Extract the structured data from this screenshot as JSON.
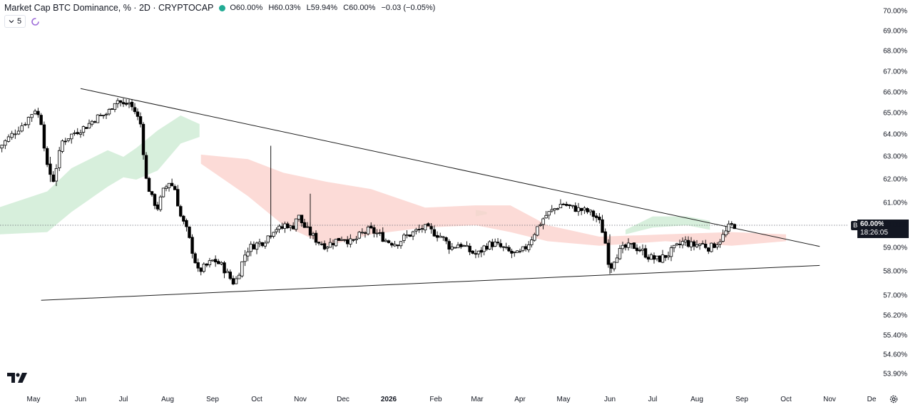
{
  "header": {
    "title": "Market Cap BTC Dominance, %  · 2D · CRYPTOCAP",
    "open": "O60.00%",
    "high": "H60.03%",
    "low": "L59.94%",
    "close": "C60.00%",
    "change": "−0.03 (−0.05%)",
    "collapse_count": "5"
  },
  "price_label": {
    "symbol": "BTC.D",
    "price": "60.00%",
    "countdown": "18:26:05"
  },
  "colors": {
    "up_candle": "#ffffff",
    "down_candle": "#000000",
    "cloud_bull": "#cdebd3",
    "cloud_bear": "#fbd2cd",
    "trendline": "#1e1e1e",
    "live_dot": "#22ab94"
  },
  "icons": [
    "chevron-down-icon",
    "refresh-icon",
    "tradingview-logo-icon",
    "settings-icon"
  ],
  "chart_data": {
    "type": "candlestick",
    "title": "Market Cap BTC Dominance, %",
    "interval": "2D",
    "ylim": [
      53.6,
      70.3
    ],
    "y_ticks": [
      "70.00%",
      "69.00%",
      "68.00%",
      "67.00%",
      "66.00%",
      "65.00%",
      "64.00%",
      "63.00%",
      "62.00%",
      "61.00%",
      "60.00%",
      "59.00%",
      "58.00%",
      "57.00%",
      "56.20%",
      "55.40%",
      "54.60%",
      "53.90%"
    ],
    "y_tick_values": [
      70.0,
      69.0,
      68.0,
      67.0,
      66.0,
      65.0,
      64.0,
      63.0,
      62.0,
      61.0,
      60.0,
      59.0,
      58.0,
      57.0,
      56.2,
      55.4,
      54.6,
      53.9
    ],
    "x_ticks": [
      "May",
      "Jun",
      "Jul",
      "Aug",
      "Sep",
      "Oct",
      "Nov",
      "Dec",
      "2026",
      "Feb",
      "Mar",
      "Apr",
      "May",
      "Jun",
      "Jul",
      "Aug",
      "Sep",
      "Oct",
      "Nov",
      "De"
    ],
    "x_tick_dates": [
      "2025-05-01",
      "2025-06-01",
      "2025-07-01",
      "2025-08-01",
      "2025-09-01",
      "2025-10-01",
      "2025-11-01",
      "2025-12-01",
      "2026-01-01",
      "2026-02-01",
      "2026-03-01",
      "2026-04-01",
      "2026-05-01",
      "2026-06-01",
      "2026-07-01",
      "2026-08-01",
      "2026-09-01",
      "2026-10-01",
      "2026-11-01",
      "2026-12-01"
    ],
    "x_range": [
      "2025-04-10",
      "2026-12-10"
    ],
    "close_path": [
      [
        "2025-04-10",
        63.4
      ],
      [
        "2025-04-18",
        64.0
      ],
      [
        "2025-04-26",
        64.6
      ],
      [
        "2025-05-02",
        65.2
      ],
      [
        "2025-05-06",
        64.6
      ],
      [
        "2025-05-10",
        62.5
      ],
      [
        "2025-05-14",
        62.0
      ],
      [
        "2025-05-20",
        63.7
      ],
      [
        "2025-05-28",
        64.1
      ],
      [
        "2025-06-05",
        64.4
      ],
      [
        "2025-06-12",
        64.8
      ],
      [
        "2025-06-20",
        65.0
      ],
      [
        "2025-06-26",
        65.7
      ],
      [
        "2025-07-01",
        65.4
      ],
      [
        "2025-07-05",
        65.5
      ],
      [
        "2025-07-09",
        65.1
      ],
      [
        "2025-07-13",
        64.5
      ],
      [
        "2025-07-17",
        62.0
      ],
      [
        "2025-07-21",
        61.2
      ],
      [
        "2025-07-25",
        60.8
      ],
      [
        "2025-07-29",
        61.5
      ],
      [
        "2025-08-02",
        61.9
      ],
      [
        "2025-08-06",
        61.6
      ],
      [
        "2025-08-10",
        60.4
      ],
      [
        "2025-08-14",
        59.8
      ],
      [
        "2025-08-18",
        58.9
      ],
      [
        "2025-08-22",
        58.0
      ],
      [
        "2025-08-27",
        58.2
      ],
      [
        "2025-09-02",
        58.5
      ],
      [
        "2025-09-08",
        58.2
      ],
      [
        "2025-09-12",
        57.8
      ],
      [
        "2025-09-16",
        57.5
      ],
      [
        "2025-09-20",
        58.2
      ],
      [
        "2025-09-24",
        58.9
      ],
      [
        "2025-09-28",
        59.1
      ],
      [
        "2025-10-02",
        59.2
      ],
      [
        "2025-10-06",
        59.3
      ],
      [
        "2025-10-10",
        59.6
      ],
      [
        "2025-10-14",
        59.9
      ],
      [
        "2025-10-18",
        59.8
      ],
      [
        "2025-10-22",
        60.1
      ],
      [
        "2025-10-26",
        59.8
      ],
      [
        "2025-10-30",
        60.5
      ],
      [
        "2025-11-03",
        60.0
      ],
      [
        "2025-11-07",
        59.7
      ],
      [
        "2025-11-13",
        59.3
      ],
      [
        "2025-11-19",
        59.1
      ],
      [
        "2025-11-25",
        59.3
      ],
      [
        "2025-12-01",
        59.5
      ],
      [
        "2025-12-07",
        59.2
      ],
      [
        "2025-12-13",
        59.6
      ],
      [
        "2025-12-19",
        59.8
      ],
      [
        "2025-12-25",
        59.6
      ],
      [
        "2025-12-31",
        59.3
      ],
      [
        "2026-01-06",
        59.2
      ],
      [
        "2026-01-12",
        59.5
      ],
      [
        "2026-01-18",
        59.7
      ],
      [
        "2026-01-24",
        59.9
      ],
      [
        "2026-01-30",
        59.7
      ],
      [
        "2026-02-05",
        59.5
      ],
      [
        "2026-02-11",
        59.0
      ],
      [
        "2026-02-17",
        59.2
      ],
      [
        "2026-02-23",
        58.9
      ],
      [
        "2026-03-01",
        58.7
      ],
      [
        "2026-03-07",
        59.1
      ],
      [
        "2026-03-13",
        59.2
      ],
      [
        "2026-03-19",
        59.0
      ],
      [
        "2026-03-25",
        58.8
      ],
      [
        "2026-03-31",
        58.7
      ],
      [
        "2026-04-06",
        59.1
      ],
      [
        "2026-04-12",
        59.8
      ],
      [
        "2026-04-18",
        60.4
      ],
      [
        "2026-04-24",
        60.7
      ],
      [
        "2026-04-30",
        61.0
      ],
      [
        "2026-05-06",
        60.8
      ],
      [
        "2026-05-12",
        60.7
      ],
      [
        "2026-05-18",
        60.6
      ],
      [
        "2026-05-24",
        60.3
      ],
      [
        "2026-05-28",
        59.6
      ],
      [
        "2026-06-01",
        58.1
      ],
      [
        "2026-06-05",
        58.7
      ],
      [
        "2026-06-11",
        59.0
      ],
      [
        "2026-06-17",
        59.1
      ],
      [
        "2026-06-23",
        58.9
      ],
      [
        "2026-06-29",
        58.6
      ],
      [
        "2026-07-05",
        58.5
      ],
      [
        "2026-07-11",
        58.7
      ],
      [
        "2026-07-17",
        59.0
      ],
      [
        "2026-07-23",
        59.3
      ],
      [
        "2026-07-29",
        59.1
      ],
      [
        "2026-08-04",
        59.2
      ],
      [
        "2026-08-10",
        59.0
      ],
      [
        "2026-08-16",
        59.3
      ],
      [
        "2026-08-20",
        59.6
      ],
      [
        "2026-08-24",
        60.0
      ],
      [
        "2026-08-28",
        60.0
      ]
    ],
    "trendlines": [
      {
        "from": [
          "2025-06-01",
          66.2
        ],
        "to": [
          "2026-10-25",
          59.07
        ]
      },
      {
        "from": [
          "2025-05-06",
          56.82
        ],
        "to": [
          "2026-10-25",
          58.26
        ]
      }
    ],
    "cloud_bull": [
      {
        "upper": [
          [
            "2025-04-10",
            60.8
          ],
          [
            "2025-05-10",
            61.5
          ],
          [
            "2025-05-26",
            62.5
          ],
          [
            "2025-06-20",
            63.3
          ],
          [
            "2025-07-01",
            63.0
          ],
          [
            "2025-07-10",
            63.4
          ],
          [
            "2025-07-25",
            64.2
          ],
          [
            "2025-08-10",
            64.9
          ],
          [
            "2025-08-23",
            64.5
          ]
        ],
        "lower": [
          [
            "2025-04-10",
            59.6
          ],
          [
            "2025-05-10",
            59.7
          ],
          [
            "2025-05-26",
            60.6
          ],
          [
            "2025-06-20",
            61.7
          ],
          [
            "2025-07-01",
            62.1
          ],
          [
            "2025-07-10",
            62.0
          ],
          [
            "2025-07-25",
            62.4
          ],
          [
            "2025-08-10",
            63.6
          ],
          [
            "2025-08-23",
            63.9
          ]
        ]
      },
      {
        "upper": [
          [
            "2026-02-28",
            60.7
          ],
          [
            "2026-03-08",
            60.6
          ]
        ],
        "lower": [
          [
            "2026-02-28",
            60.4
          ],
          [
            "2026-03-08",
            60.5
          ]
        ]
      },
      {
        "upper": [
          [
            "2026-06-12",
            59.8
          ],
          [
            "2026-07-01",
            60.4
          ],
          [
            "2026-07-25",
            60.4
          ],
          [
            "2026-08-10",
            60.2
          ]
        ],
        "lower": [
          [
            "2026-06-12",
            59.6
          ],
          [
            "2026-07-01",
            59.9
          ],
          [
            "2026-07-25",
            60.0
          ],
          [
            "2026-08-10",
            59.8
          ]
        ]
      }
    ],
    "cloud_bear": [
      {
        "upper": [
          [
            "2025-08-24",
            63.1
          ],
          [
            "2025-09-25",
            62.9
          ],
          [
            "2025-10-20",
            62.3
          ],
          [
            "2025-11-20",
            61.9
          ],
          [
            "2025-12-20",
            61.6
          ],
          [
            "2026-01-25",
            60.8
          ],
          [
            "2026-02-28",
            60.9
          ],
          [
            "2026-03-25",
            60.9
          ],
          [
            "2026-04-20",
            60.0
          ],
          [
            "2026-05-25",
            59.5
          ],
          [
            "2026-07-10",
            59.6
          ],
          [
            "2026-08-25",
            59.7
          ],
          [
            "2026-10-01",
            59.6
          ]
        ],
        "lower": [
          [
            "2025-08-24",
            62.7
          ],
          [
            "2025-09-25",
            61.3
          ],
          [
            "2025-10-20",
            60.0
          ],
          [
            "2025-11-20",
            59.1
          ],
          [
            "2025-12-20",
            59.6
          ],
          [
            "2026-01-25",
            59.9
          ],
          [
            "2026-02-28",
            60.0
          ],
          [
            "2026-03-25",
            59.7
          ],
          [
            "2026-04-20",
            59.3
          ],
          [
            "2026-05-25",
            59.1
          ],
          [
            "2026-07-10",
            59.3
          ],
          [
            "2026-08-25",
            59.1
          ],
          [
            "2026-10-01",
            59.3
          ]
        ]
      }
    ],
    "last_price": 60.0,
    "grid": false,
    "legend": "top-left"
  }
}
